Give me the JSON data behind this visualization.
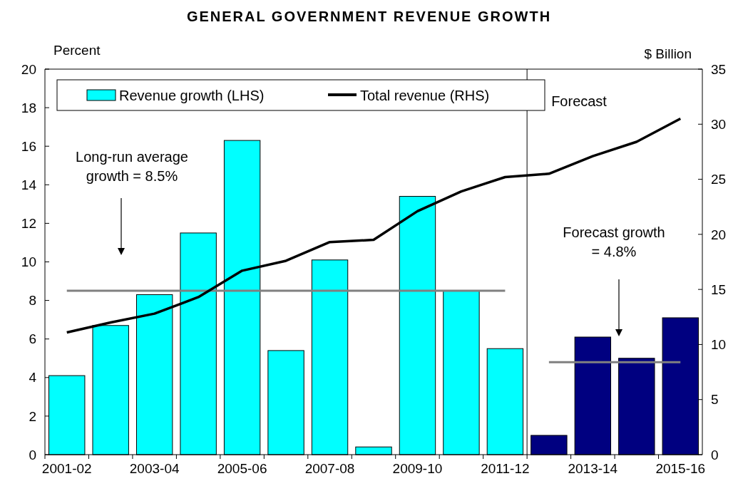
{
  "chart_data": {
    "type": "bar",
    "title": "GENERAL GOVERNMENT REVENUE GROWTH",
    "ylabel": "Percent",
    "y2label": "$ Billion",
    "categories": [
      "2001-02",
      null,
      "2003-04",
      null,
      "2005-06",
      null,
      "2007-08",
      null,
      "2009-10",
      null,
      "2011-12",
      null,
      "2013-14",
      null,
      "2015-16"
    ],
    "series": [
      {
        "name": "Revenue growth (LHS)",
        "color": "#00ffff",
        "colors": [
          "#00ffff",
          "#00ffff",
          "#00ffff",
          "#00ffff",
          "#00ffff",
          "#00ffff",
          "#00ffff",
          "#00ffff",
          "#00ffff",
          "#00ffff",
          "#00ffff",
          "#000080",
          "#000080",
          "#000080",
          "#000080"
        ],
        "values": [
          4.1,
          6.7,
          8.3,
          11.5,
          16.3,
          5.4,
          10.1,
          0.4,
          13.4,
          8.5,
          5.5,
          1.0,
          6.1,
          5.0,
          7.1
        ]
      },
      {
        "type": "line",
        "color": "#808080",
        "values": [
          8.5,
          8.5,
          8.5,
          8.5,
          8.5,
          8.5,
          8.5,
          8.5,
          8.5,
          8.5,
          8.5,
          null,
          null,
          null,
          null
        ]
      },
      {
        "type": "line",
        "color": "#808080",
        "values": [
          null,
          null,
          null,
          null,
          null,
          null,
          null,
          null,
          null,
          null,
          null,
          4.8,
          4.8,
          4.8,
          4.8
        ]
      },
      {
        "name": "Total revenue (RHS)",
        "type": "line",
        "axis": "y2",
        "color": "#000000",
        "values": [
          11.1,
          12.0,
          12.8,
          14.3,
          16.7,
          17.6,
          19.3,
          19.5,
          22.1,
          23.9,
          25.2,
          25.5,
          27.1,
          28.4,
          30.5
        ]
      }
    ],
    "ylim": [
      0,
      20
    ],
    "yticks": [
      0,
      2,
      4,
      6,
      8,
      10,
      12,
      14,
      16,
      18,
      20
    ],
    "y2lim": [
      0,
      35
    ],
    "y2ticks": [
      0,
      5,
      10,
      15,
      20,
      25,
      30,
      35
    ],
    "ref_lines": [
      {
        "axis": "x",
        "value": "2011-12",
        "label": "Forecast",
        "color": "#000000"
      }
    ],
    "annotations": [
      "Long-run average\ngrowth = 8.5%",
      "Forecast growth\n= 4.8%"
    ],
    "legend": "top left"
  }
}
